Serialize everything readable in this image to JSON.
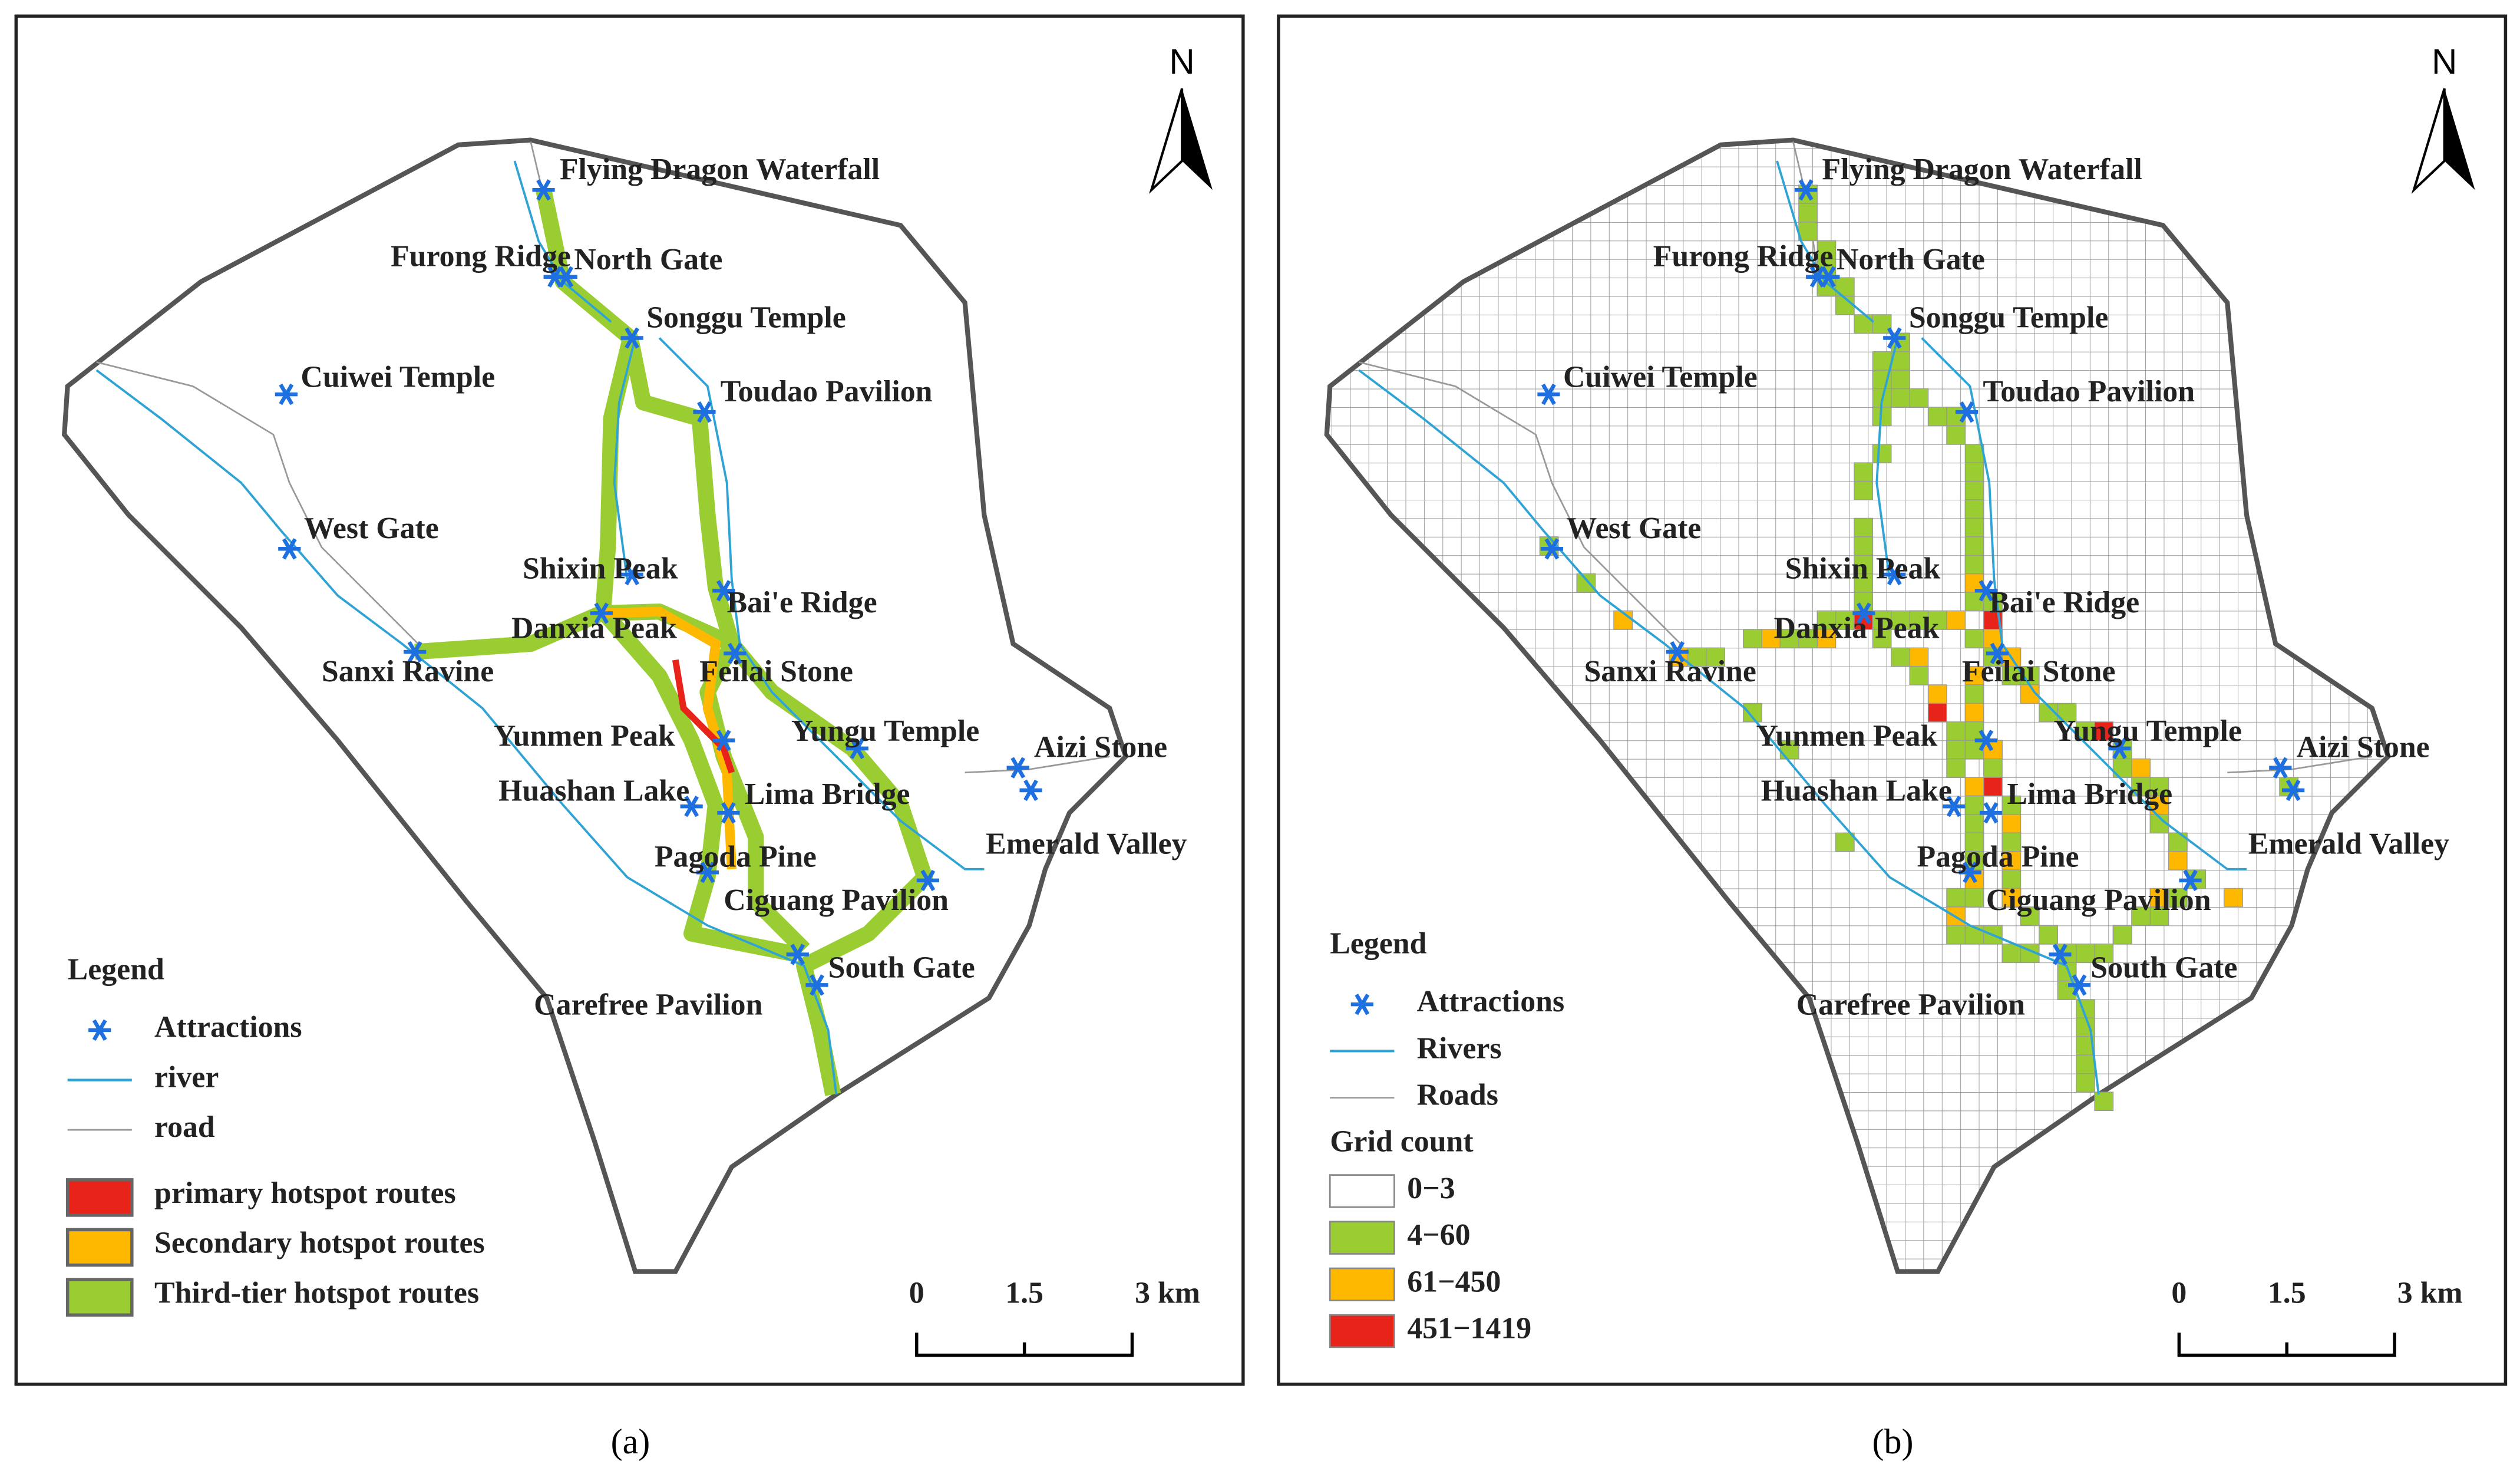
{
  "panels": [
    {
      "caption": "(a)",
      "north": "N",
      "attractions": [
        "Flying Dragon Waterfall",
        "Furong Ridge",
        "North Gate",
        "Songgu Temple",
        "Cuiwei Temple",
        "Toudao Pavilion",
        "West Gate",
        "Shixin Peak",
        "Bai'e Ridge",
        "Danxia Peak",
        "Sanxi Ravine",
        "Feilai Stone",
        "Yungu Temple",
        "Yunmen Peak",
        "Aizi Stone",
        "Huashan Lake",
        "Lima Bridge",
        "Emerald Valley",
        "Pagoda Pine",
        "Ciguang Pavilion",
        "South Gate",
        "Carefree Pavilion"
      ],
      "legend": {
        "title": "Legend",
        "items": [
          "Attractions",
          "river",
          "road",
          "primary hotspot routes",
          "Secondary hotspot routes",
          "Third-tier hotspot routes"
        ]
      },
      "scale": [
        "0",
        "1.5",
        "3 km"
      ]
    },
    {
      "caption": "(b)",
      "north": "N",
      "attractions": [
        "Flying Dragon Waterfall",
        "Furong Ridge",
        "North Gate",
        "Songgu Temple",
        "Cuiwei Temple",
        "Toudao Pavilion",
        "West Gate",
        "Shixin Peak",
        "Bai'e Ridge",
        "Danxia Peak",
        "Sanxi Ravine",
        "Feilai Stone",
        "Yungu Temple",
        "Yunmen Peak",
        "Aizi Stone",
        "Huashan Lake",
        "Lima Bridge",
        "Emerald Valley",
        "Pagoda Pine",
        "Ciguang Pavilion",
        "South Gate",
        "Carefree Pavilion"
      ],
      "legend": {
        "title": "Legend",
        "items": [
          "Attractions",
          "Rivers",
          "Roads"
        ],
        "subtitle": "Grid count",
        "classes": [
          "0−3",
          "4−60",
          "61−450",
          "451−1419"
        ]
      },
      "scale": [
        "0",
        "1.5",
        "3 km"
      ]
    }
  ]
}
